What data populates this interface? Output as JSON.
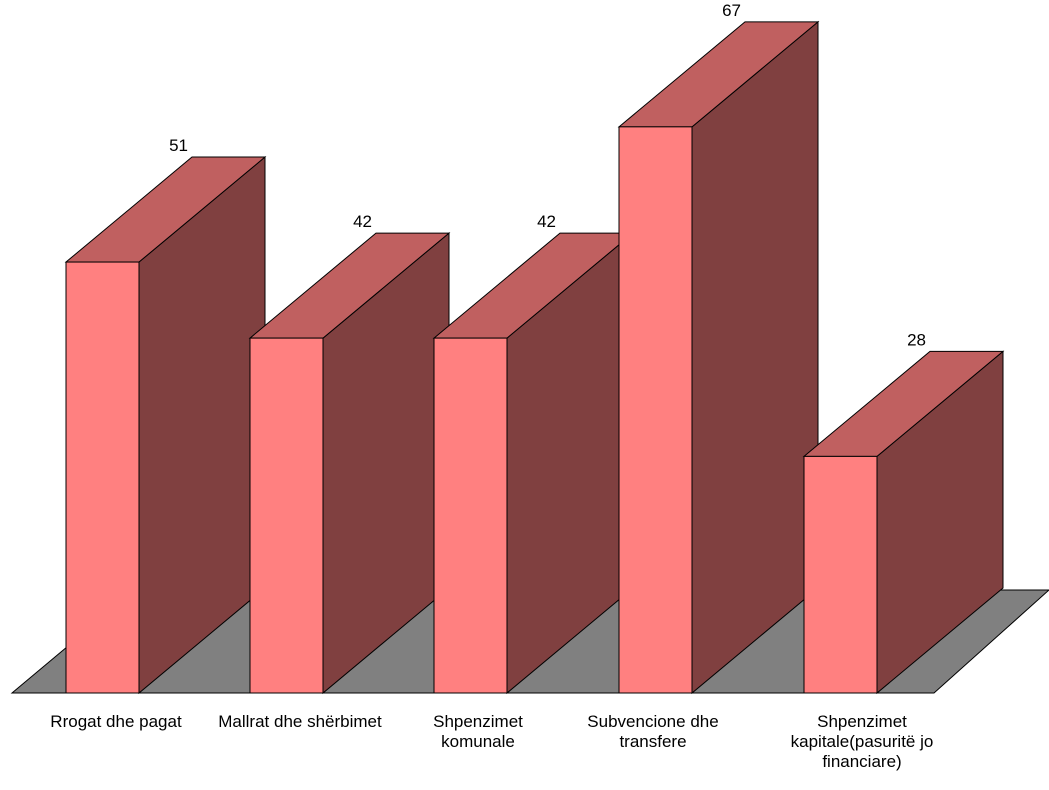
{
  "chart_data": {
    "type": "bar",
    "style": "3d",
    "categories": [
      "Rrogat dhe pagat",
      "Mallrat dhe shërbimet",
      "Shpenzimet\nkomunale",
      "Subvencione dhe\ntransfere",
      "Shpenzimet\nkapitale(pasuritë jo\nfinanciare)"
    ],
    "values": [
      51,
      42,
      42,
      67,
      28
    ],
    "data_labels": [
      "51",
      "42",
      "42",
      "67",
      "28"
    ],
    "ylim": [
      0,
      67
    ],
    "grid": false,
    "legend": "none",
    "colors": {
      "bar_front": "#ff8080",
      "bar_top": "#c06060",
      "bar_side": "#804040",
      "floor": "#808080",
      "outline": "#000000"
    }
  }
}
